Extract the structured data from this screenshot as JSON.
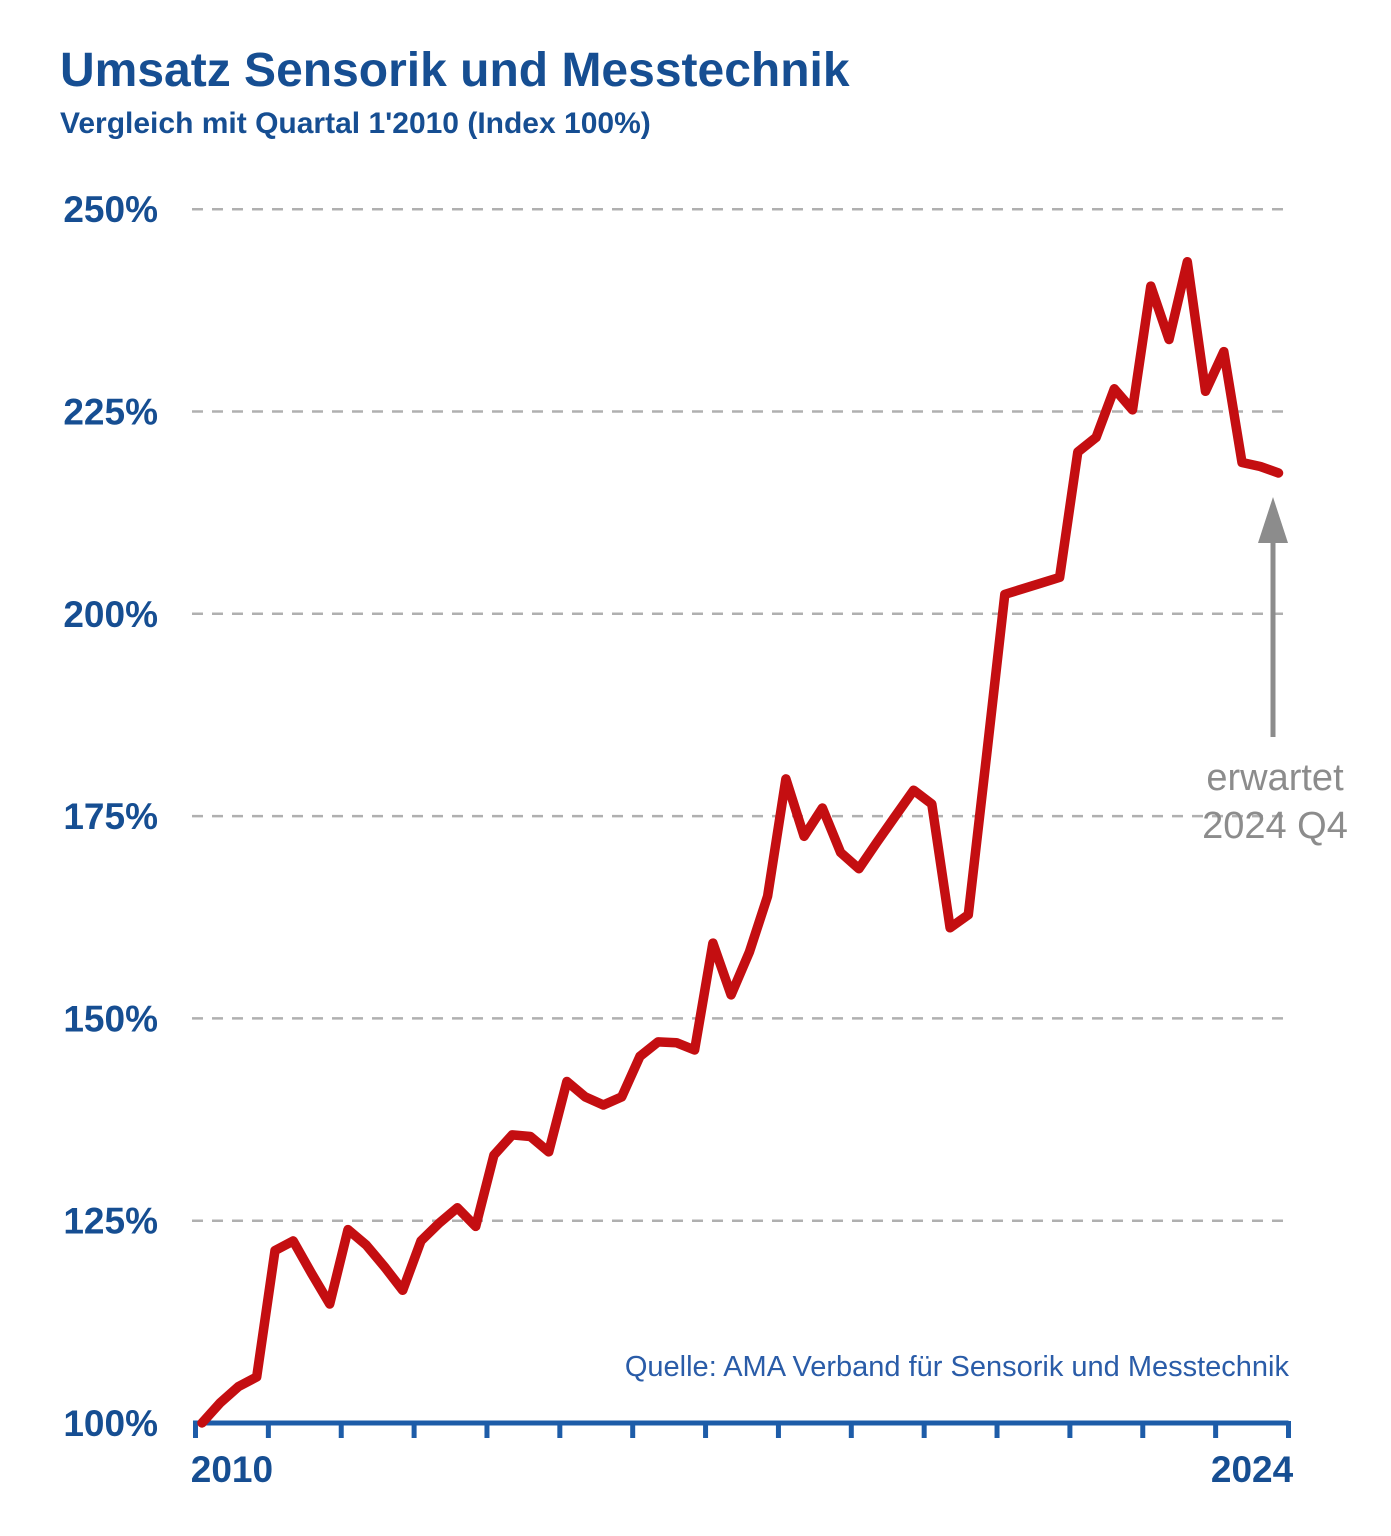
{
  "header": {
    "title": "Umsatz Sensorik und Messtechnik",
    "subtitle": "Vergleich mit Quartal 1'2010 (Index 100%)"
  },
  "colors": {
    "heading_blue": "#164e92",
    "axis_blue": "#1d5ca8",
    "source_blue": "#2a5ca8",
    "series_red": "#c40e11",
    "grid_gray": "#b0b0b0",
    "annotation_gray": "#8c8c8c"
  },
  "chart_data": {
    "type": "line",
    "title": "Umsatz Sensorik und Messtechnik",
    "subtitle": "Vergleich mit Quartal 1'2010 (Index 100%)",
    "unit": "%",
    "frequency": "quarterly",
    "x_start": "2010 Q1",
    "x_end": "2024 Q4",
    "x_years": [
      2010,
      2024
    ],
    "ylim": [
      100,
      250
    ],
    "grid": "horizontal dashed",
    "legend": "none",
    "y_ticks": [
      {
        "value": 100,
        "label": "100%"
      },
      {
        "value": 125,
        "label": "125%"
      },
      {
        "value": 150,
        "label": "150%"
      },
      {
        "value": 175,
        "label": "175%"
      },
      {
        "value": 200,
        "label": "200%"
      },
      {
        "value": 225,
        "label": "225%"
      },
      {
        "value": 250,
        "label": "250%"
      }
    ],
    "x_tick_labels": [
      {
        "label": "2010",
        "year_index": 0
      },
      {
        "label": "2024",
        "year_index": 14
      }
    ],
    "values": [
      100,
      102.5,
      104.5,
      105.7,
      121.3,
      122.5,
      118.5,
      114.7,
      123.9,
      122.0,
      119.3,
      116.4,
      122.5,
      124.7,
      126.6,
      124.3,
      133.1,
      135.6,
      135.4,
      133.5,
      142.2,
      140.3,
      139.3,
      140.3,
      145.3,
      147.1,
      147.0,
      146.1,
      159.3,
      152.9,
      158.2,
      165.1,
      179.6,
      172.5,
      176.0,
      170.5,
      168.5,
      171.8,
      175.0,
      178.2,
      176.5,
      161.2,
      162.8,
      182.5,
      202.4,
      203.1,
      203.8,
      204.5,
      220.0,
      221.8,
      227.8,
      225.2,
      240.5,
      233.9,
      243.5,
      227.5,
      232.4,
      218.7,
      218.2,
      217.4
    ],
    "annotation": {
      "line1": "erwartet",
      "line2": "2024 Q4",
      "points_to": "last data point (2024 Q4, ~217%)"
    },
    "source": "Quelle: AMA Verband für Sensorik und Messtechnik"
  }
}
